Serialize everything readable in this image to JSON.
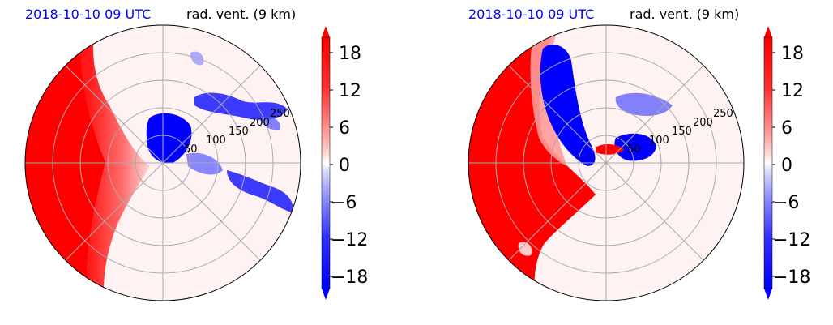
{
  "panels": [
    {
      "time_label": "2018-10-10 09 UTC",
      "field_label": "rad. vent. (9 km)"
    },
    {
      "time_label": "2018-10-10 09 UTC",
      "field_label": "rad. vent. (9 km)"
    }
  ],
  "chart_data": [
    {
      "type": "heatmap",
      "projection": "polar",
      "title_left": "2018-10-10 09 UTC",
      "title_right": "rad. vent. (9 km)",
      "range_rings": [
        50,
        100,
        150,
        200,
        250
      ],
      "range_ring_labels": [
        "50",
        "100",
        "150",
        "200",
        "250"
      ],
      "colorbar": {
        "ticks": [
          -18,
          -12,
          -6,
          0,
          6,
          12,
          18
        ],
        "tick_labels": [
          "−18",
          "−12",
          "−6",
          "0",
          "6",
          "12",
          "18"
        ],
        "vmin": -21,
        "vmax": 21,
        "extend": "both",
        "colormap": "bwr"
      },
      "grid": true
    },
    {
      "type": "heatmap",
      "projection": "polar",
      "title_left": "2018-10-10 09 UTC",
      "title_right": "rad. vent. (9 km)",
      "range_rings": [
        50,
        100,
        150,
        200,
        250
      ],
      "range_ring_labels": [
        "50",
        "100",
        "150",
        "200",
        "250"
      ],
      "colorbar": {
        "ticks": [
          -18,
          -12,
          -6,
          0,
          6,
          12,
          18
        ],
        "tick_labels": [
          "−18",
          "−12",
          "−6",
          "0",
          "6",
          "12",
          "18"
        ],
        "vmin": -21,
        "vmax": 21,
        "extend": "both",
        "colormap": "bwr"
      },
      "grid": true
    }
  ],
  "colors": {
    "positive": "#ff0000",
    "negative": "#0000ff",
    "neutral": "#fff0f0",
    "title_time": "#0000ff"
  }
}
